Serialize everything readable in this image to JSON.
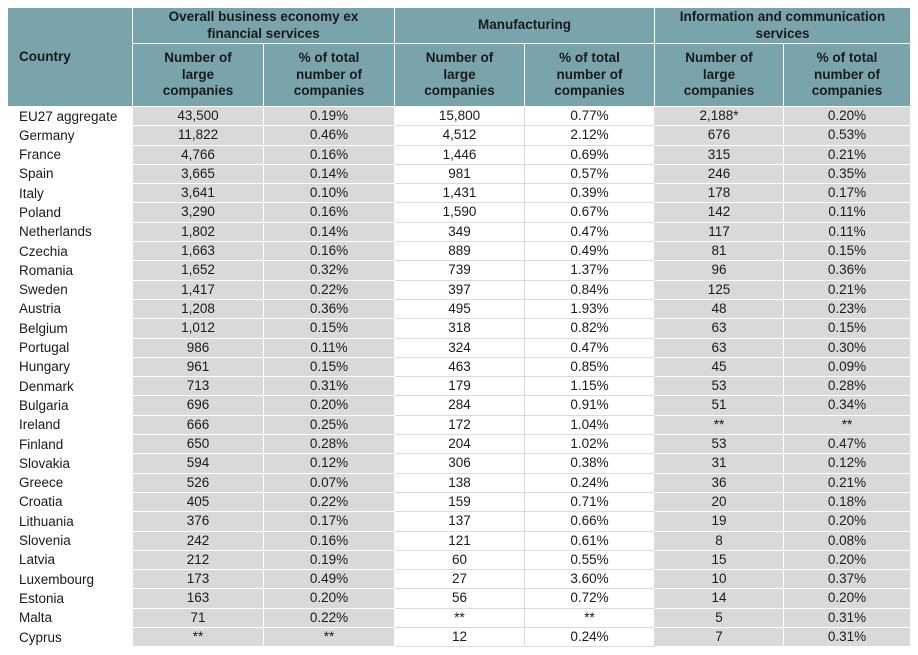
{
  "table": {
    "corner_header": "Country",
    "groups": [
      {
        "label": "Overall business economy ex\nfinancial services"
      },
      {
        "label": "Manufacturing"
      },
      {
        "label": "Information and communication\nservices"
      }
    ],
    "sub_headers": {
      "count": "Number of\nlarge\ncompanies",
      "pct": "% of total\nnumber of\ncompanies"
    },
    "rows": [
      {
        "country": "EU27 aggregate",
        "values": [
          "43,500",
          "0.19%",
          "15,800",
          "0.77%",
          "2,188*",
          "0.20%"
        ]
      },
      {
        "country": "Germany",
        "values": [
          "11,822",
          "0.46%",
          "4,512",
          "2.12%",
          "676",
          "0.53%"
        ]
      },
      {
        "country": "France",
        "values": [
          "4,766",
          "0.16%",
          "1,446",
          "0.69%",
          "315",
          "0.21%"
        ]
      },
      {
        "country": "Spain",
        "values": [
          "3,665",
          "0.14%",
          "981",
          "0.57%",
          "246",
          "0.35%"
        ]
      },
      {
        "country": "Italy",
        "values": [
          "3,641",
          "0.10%",
          "1,431",
          "0.39%",
          "178",
          "0.17%"
        ]
      },
      {
        "country": "Poland",
        "values": [
          "3,290",
          "0.16%",
          "1,590",
          "0.67%",
          "142",
          "0.11%"
        ]
      },
      {
        "country": "Netherlands",
        "values": [
          "1,802",
          "0.14%",
          "349",
          "0.47%",
          "117",
          "0.11%"
        ]
      },
      {
        "country": "Czechia",
        "values": [
          "1,663",
          "0.16%",
          "889",
          "0.49%",
          "81",
          "0.15%"
        ]
      },
      {
        "country": "Romania",
        "values": [
          "1,652",
          "0.32%",
          "739",
          "1.37%",
          "96",
          "0.36%"
        ]
      },
      {
        "country": "Sweden",
        "values": [
          "1,417",
          "0.22%",
          "397",
          "0.84%",
          "125",
          "0.21%"
        ]
      },
      {
        "country": "Austria",
        "values": [
          "1,208",
          "0.36%",
          "495",
          "1.93%",
          "48",
          "0.23%"
        ]
      },
      {
        "country": "Belgium",
        "values": [
          "1,012",
          "0.15%",
          "318",
          "0.82%",
          "63",
          "0.15%"
        ]
      },
      {
        "country": "Portugal",
        "values": [
          "986",
          "0.11%",
          "324",
          "0.47%",
          "63",
          "0.30%"
        ]
      },
      {
        "country": "Hungary",
        "values": [
          "961",
          "0.15%",
          "463",
          "0.85%",
          "45",
          "0.09%"
        ]
      },
      {
        "country": "Denmark",
        "values": [
          "713",
          "0.31%",
          "179",
          "1.15%",
          "53",
          "0.28%"
        ]
      },
      {
        "country": "Bulgaria",
        "values": [
          "696",
          "0.20%",
          "284",
          "0.91%",
          "51",
          "0.34%"
        ]
      },
      {
        "country": "Ireland",
        "values": [
          "666",
          "0.25%",
          "172",
          "1.04%",
          "**",
          "**"
        ]
      },
      {
        "country": "Finland",
        "values": [
          "650",
          "0.28%",
          "204",
          "1.02%",
          "53",
          "0.47%"
        ]
      },
      {
        "country": "Slovakia",
        "values": [
          "594",
          "0.12%",
          "306",
          "0.38%",
          "31",
          "0.12%"
        ]
      },
      {
        "country": "Greece",
        "values": [
          "526",
          "0.07%",
          "138",
          "0.24%",
          "36",
          "0.21%"
        ]
      },
      {
        "country": "Croatia",
        "values": [
          "405",
          "0.22%",
          "159",
          "0.71%",
          "20",
          "0.18%"
        ]
      },
      {
        "country": "Lithuania",
        "values": [
          "376",
          "0.17%",
          "137",
          "0.66%",
          "19",
          "0.20%"
        ]
      },
      {
        "country": "Slovenia",
        "values": [
          "242",
          "0.16%",
          "121",
          "0.61%",
          "8",
          "0.08%"
        ]
      },
      {
        "country": "Latvia",
        "values": [
          "212",
          "0.19%",
          "60",
          "0.55%",
          "15",
          "0.20%"
        ]
      },
      {
        "country": "Luxembourg",
        "values": [
          "173",
          "0.49%",
          "27",
          "3.60%",
          "10",
          "0.37%"
        ]
      },
      {
        "country": "Estonia",
        "values": [
          "163",
          "0.20%",
          "56",
          "0.72%",
          "14",
          "0.20%"
        ]
      },
      {
        "country": "Malta",
        "values": [
          "71",
          "0.22%",
          "**",
          "**",
          "5",
          "0.31%"
        ]
      },
      {
        "country": "Cyprus",
        "values": [
          "**",
          "**",
          "12",
          "0.24%",
          "7",
          "0.31%"
        ]
      }
    ]
  },
  "colors": {
    "header_bg": "#7aa4ac",
    "shaded_column_bg": "#d9d9d9",
    "text": "#1a1a1a"
  }
}
